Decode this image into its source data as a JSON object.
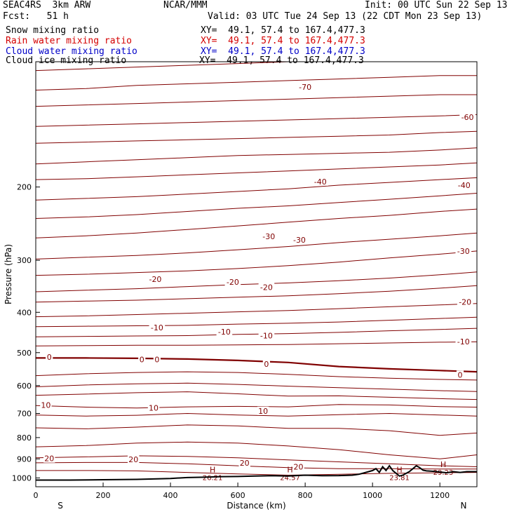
{
  "header": {
    "model": "SEAC4RS  3km ARW",
    "agency": "NCAR/MMM",
    "init": "Init: 00 UTC Sun 22 Sep 13",
    "fcst": "Fcst:   51 h",
    "valid": "Valid: 03 UTC Tue 24 Sep 13 (22 CDT Mon 23 Sep 13)"
  },
  "legend": [
    {
      "label": "Snow mixing ratio",
      "xy": "XY=  49.1, 57.4 to 167.4,477.3",
      "color": "#000000"
    },
    {
      "label": "Rain water mixing ratio",
      "xy": "XY=  49.1, 57.4 to 167.4,477.3",
      "color": "#d40000"
    },
    {
      "label": "Cloud water mixing ratio",
      "xy": "XY=  49.1, 57.4 to 167.4,477.3",
      "color": "#0000c8"
    },
    {
      "label": "Cloud ice mixing ratio",
      "xy": "XY=  49.1, 57.4 to 167.4,477.3",
      "color": "#000000"
    }
  ],
  "chart_data": {
    "type": "line",
    "title": "",
    "xlabel": "Distance (km)",
    "ylabel": "Pressure (hPa)",
    "xlim": [
      0,
      1310
    ],
    "ylim": [
      100,
      1050
    ],
    "y_scale": "log",
    "y_inverted": true,
    "x_ticks": [
      0,
      200,
      400,
      600,
      800,
      1000,
      1200
    ],
    "y_ticks": [
      200,
      300,
      400,
      500,
      600,
      700,
      800,
      900,
      1000
    ],
    "left_end_label": "S",
    "right_end_label": "N",
    "contour_color": "#800000",
    "zero_contour_color": "#800000",
    "terrain_color": "#000000",
    "contours": [
      {
        "x": [
          0,
          150,
          300,
          450,
          600,
          750,
          900,
          1050,
          1200,
          1310
        ],
        "y": [
          105,
          104,
          103,
          102,
          101,
          100,
          99,
          98,
          97,
          97
        ]
      },
      {
        "x": [
          0,
          150,
          300,
          450,
          600,
          750,
          900,
          1050,
          1200,
          1310
        ],
        "y": [
          117,
          116,
          114,
          113,
          112,
          111,
          110,
          109,
          108,
          108
        ]
      },
      {
        "x": [
          0,
          150,
          300,
          450,
          600,
          750,
          900,
          1050,
          1200,
          1310
        ],
        "y": [
          128,
          127,
          126,
          125,
          124,
          123,
          122,
          121,
          120,
          120
        ]
      },
      {
        "x": [
          0,
          150,
          300,
          450,
          600,
          750,
          900,
          1050,
          1200,
          1310
        ],
        "y": [
          143,
          142,
          141,
          140,
          139,
          138,
          137,
          136,
          135,
          134
        ]
      },
      {
        "x": [
          0,
          150,
          300,
          450,
          600,
          750,
          900,
          1050,
          1200,
          1310
        ],
        "y": [
          157,
          156,
          155,
          154,
          153,
          152,
          151,
          150,
          148,
          147
        ]
      },
      {
        "x": [
          0,
          150,
          300,
          450,
          600,
          750,
          900,
          1050,
          1200,
          1310
        ],
        "y": [
          176,
          174,
          172,
          170,
          168,
          167,
          166,
          165,
          163,
          161
        ]
      },
      {
        "x": [
          0,
          150,
          300,
          450,
          600,
          750,
          900,
          1050,
          1200,
          1310
        ],
        "y": [
          192,
          191,
          189,
          187,
          185,
          183,
          181,
          179,
          177,
          175
        ]
      },
      {
        "x": [
          0,
          150,
          300,
          450,
          600,
          750,
          900,
          1050,
          1200,
          1310
        ],
        "y": [
          215,
          213,
          211,
          208,
          205,
          202,
          198,
          195,
          192,
          190
        ]
      },
      {
        "x": [
          0,
          150,
          300,
          450,
          600,
          750,
          900,
          1050,
          1200,
          1310
        ],
        "y": [
          238,
          236,
          233,
          229,
          225,
          222,
          218,
          214,
          210,
          207
        ]
      },
      {
        "x": [
          0,
          150,
          300,
          450,
          600,
          750,
          900,
          1050,
          1200,
          1310
        ],
        "y": [
          265,
          262,
          258,
          253,
          248,
          243,
          238,
          234,
          229,
          226
        ]
      },
      {
        "x": [
          0,
          150,
          300,
          450,
          600,
          750,
          900,
          1050,
          1200,
          1310
        ],
        "y": [
          298,
          295,
          292,
          288,
          283,
          278,
          272,
          267,
          262,
          258
        ]
      },
      {
        "x": [
          0,
          150,
          300,
          450,
          600,
          750,
          900,
          1050,
          1200,
          1310
        ],
        "y": [
          326,
          324,
          321,
          318,
          314,
          309,
          303,
          296,
          290,
          285
        ]
      },
      {
        "x": [
          0,
          150,
          300,
          450,
          600,
          750,
          900,
          1050,
          1200,
          1310
        ],
        "y": [
          357,
          354,
          351,
          347,
          343,
          340,
          336,
          331,
          325,
          320
        ]
      },
      {
        "x": [
          0,
          150,
          300,
          450,
          600,
          750,
          900,
          1050,
          1200,
          1310
        ],
        "y": [
          378,
          376,
          374,
          371,
          368,
          365,
          361,
          356,
          350,
          345
        ]
      },
      {
        "x": [
          0,
          150,
          300,
          450,
          600,
          750,
          900,
          1050,
          1200,
          1310
        ],
        "y": [
          410,
          408,
          405,
          402,
          399,
          396,
          392,
          388,
          384,
          381
        ]
      },
      {
        "x": [
          0,
          150,
          300,
          450,
          600,
          750,
          900,
          1050,
          1200,
          1310
        ],
        "y": [
          433,
          432,
          431,
          430,
          427,
          425,
          422,
          418,
          414,
          411
        ]
      },
      {
        "x": [
          0,
          150,
          300,
          450,
          600,
          750,
          900,
          1050,
          1200,
          1310
        ],
        "y": [
          458,
          457,
          456,
          455,
          452,
          450,
          447,
          443,
          440,
          437
        ]
      },
      {
        "x": [
          0,
          150,
          300,
          450,
          600,
          750,
          900,
          1050,
          1200,
          1310
        ],
        "y": [
          482,
          481,
          480,
          480,
          479,
          478,
          476,
          474,
          472,
          471
        ]
      },
      {
        "x": [
          0,
          150,
          300,
          450,
          600,
          750,
          900,
          1050,
          1200,
          1310
        ],
        "y": [
          515,
          515,
          516,
          518,
          522,
          528,
          540,
          547,
          552,
          556
        ],
        "bold": true
      },
      {
        "x": [
          0,
          150,
          300,
          450,
          600,
          750,
          900,
          1050,
          1200,
          1310
        ],
        "y": [
          568,
          562,
          558,
          556,
          558,
          564,
          571,
          576,
          580,
          582
        ]
      },
      {
        "x": [
          0,
          150,
          300,
          450,
          600,
          750,
          900,
          1050,
          1200,
          1310
        ],
        "y": [
          604,
          598,
          594,
          592,
          596,
          602,
          607,
          612,
          617,
          620
        ]
      },
      {
        "x": [
          0,
          150,
          300,
          450,
          600,
          750,
          900,
          1050,
          1200,
          1310
        ],
        "y": [
          633,
          629,
          624,
          621,
          628,
          636,
          635,
          640,
          645,
          648
        ]
      },
      {
        "x": [
          0,
          150,
          300,
          450,
          600,
          750,
          900,
          1050,
          1200,
          1310
        ],
        "y": [
          670,
          676,
          679,
          675,
          673,
          675,
          666,
          668,
          674,
          676
        ]
      },
      {
        "x": [
          0,
          150,
          300,
          450,
          600,
          750,
          900,
          1050,
          1200,
          1310
        ],
        "y": [
          706,
          710,
          707,
          700,
          706,
          710,
          705,
          700,
          706,
          710
        ]
      },
      {
        "x": [
          0,
          150,
          300,
          450,
          600,
          750,
          900,
          1050,
          1200,
          1310
        ],
        "y": [
          758,
          762,
          755,
          746,
          750,
          760,
          760,
          770,
          790,
          780
        ]
      },
      {
        "x": [
          0,
          150,
          300,
          450,
          600,
          750,
          900,
          1050,
          1200,
          1310
        ],
        "y": [
          842,
          836,
          825,
          820,
          825,
          838,
          855,
          880,
          900,
          880
        ]
      },
      {
        "x": [
          0,
          150,
          300,
          450,
          600,
          750,
          900,
          1050,
          1200,
          1310
        ],
        "y": [
          895,
          890,
          885,
          888,
          895,
          905,
          915,
          925,
          935,
          940
        ]
      },
      {
        "x": [
          0,
          150,
          300,
          450,
          600,
          750,
          900,
          1050,
          1200,
          1310
        ],
        "y": [
          920,
          918,
          918,
          925,
          935,
          945,
          950,
          950,
          952,
          952
        ]
      },
      {
        "x": [
          0,
          150,
          300,
          450,
          600,
          750,
          900,
          1050,
          1200,
          1310
        ],
        "y": [
          960,
          960,
          962,
          970,
          978,
          985,
          980,
          975,
          972,
          970
        ]
      }
    ],
    "contour_labels": [
      {
        "x": 800,
        "y": 115,
        "text": "-70"
      },
      {
        "x": 1282,
        "y": 136,
        "text": "-60"
      },
      {
        "x": 845,
        "y": 194,
        "text": "-40"
      },
      {
        "x": 1272,
        "y": 198,
        "text": "-40"
      },
      {
        "x": 692,
        "y": 263,
        "text": "-30"
      },
      {
        "x": 783,
        "y": 268,
        "text": "-30"
      },
      {
        "x": 1270,
        "y": 285,
        "text": "-30"
      },
      {
        "x": 355,
        "y": 333,
        "text": "-20"
      },
      {
        "x": 585,
        "y": 338,
        "text": "-20"
      },
      {
        "x": 685,
        "y": 348,
        "text": "-20"
      },
      {
        "x": 1275,
        "y": 378,
        "text": "-20"
      },
      {
        "x": 360,
        "y": 435,
        "text": "-10"
      },
      {
        "x": 560,
        "y": 445,
        "text": "-10"
      },
      {
        "x": 685,
        "y": 455,
        "text": "-10"
      },
      {
        "x": 1270,
        "y": 470,
        "text": "-10"
      },
      {
        "x": 40,
        "y": 512,
        "text": "0"
      },
      {
        "x": 315,
        "y": 519,
        "text": "0"
      },
      {
        "x": 360,
        "y": 519,
        "text": "0"
      },
      {
        "x": 685,
        "y": 532,
        "text": "0"
      },
      {
        "x": 1260,
        "y": 565,
        "text": "0"
      },
      {
        "x": 30,
        "y": 668,
        "text": "10"
      },
      {
        "x": 350,
        "y": 678,
        "text": "10"
      },
      {
        "x": 675,
        "y": 690,
        "text": "10"
      },
      {
        "x": 40,
        "y": 898,
        "text": "20"
      },
      {
        "x": 290,
        "y": 902,
        "text": "20"
      },
      {
        "x": 620,
        "y": 920,
        "text": "20"
      },
      {
        "x": 780,
        "y": 940,
        "text": "20"
      }
    ],
    "highs": [
      {
        "x": 525,
        "y": 978,
        "h": "H",
        "v": "26.21"
      },
      {
        "x": 755,
        "y": 978,
        "h": "H",
        "v": "24.57"
      },
      {
        "x": 1080,
        "y": 978,
        "h": "H",
        "v": "23.81"
      },
      {
        "x": 1210,
        "y": 950,
        "h": "H",
        "v": "29.23"
      }
    ],
    "terrain": {
      "x": [
        0,
        100,
        200,
        300,
        400,
        450,
        500,
        550,
        600,
        650,
        700,
        750,
        800,
        850,
        900,
        940,
        960,
        980,
        1000,
        1010,
        1020,
        1030,
        1040,
        1050,
        1060,
        1070,
        1080,
        1090,
        1100,
        1110,
        1120,
        1130,
        1140,
        1150,
        1160,
        1180,
        1200,
        1220,
        1240,
        1260,
        1280,
        1310
      ],
      "y": [
        1012,
        1012,
        1010,
        1008,
        1003,
        998,
        996,
        993,
        992,
        990,
        988,
        990,
        985,
        988,
        987,
        985,
        980,
        970,
        960,
        950,
        970,
        940,
        960,
        935,
        960,
        975,
        990,
        985,
        975,
        965,
        950,
        935,
        945,
        958,
        962,
        964,
        968,
        972,
        966,
        970,
        966,
        966
      ]
    }
  }
}
